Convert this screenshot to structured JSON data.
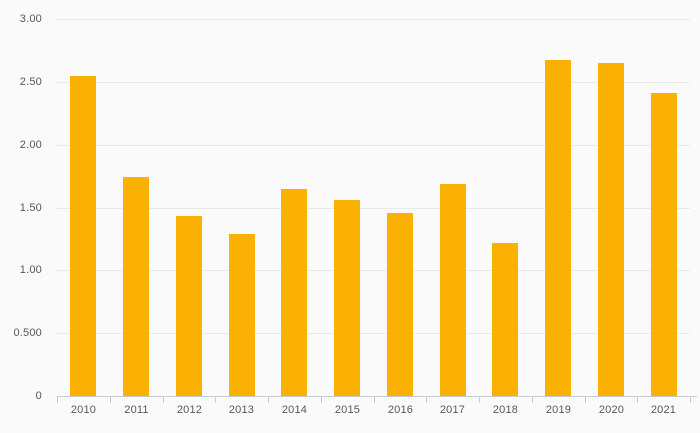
{
  "chart_data": {
    "type": "bar",
    "title": "",
    "xlabel": "",
    "ylabel": "",
    "categories": [
      "2010",
      "2011",
      "2012",
      "2013",
      "2014",
      "2015",
      "2016",
      "2017",
      "2018",
      "2019",
      "2020",
      "2021"
    ],
    "values": [
      2.55,
      1.74,
      1.43,
      1.29,
      1.65,
      1.56,
      1.46,
      1.69,
      1.22,
      2.67,
      2.65,
      2.41
    ],
    "ylim": [
      0,
      3
    ],
    "y_ticks": [
      {
        "value": 3,
        "label": "3.00"
      },
      {
        "value": 2.5,
        "label": "2.50"
      },
      {
        "value": 2,
        "label": "2.00"
      },
      {
        "value": 1.5,
        "label": "1.50"
      },
      {
        "value": 1,
        "label": "1.00"
      },
      {
        "value": 0.5,
        "label": "0.500"
      },
      {
        "value": 0,
        "label": "0"
      }
    ],
    "grid": "horizontal-only",
    "legend": "none",
    "colors": {
      "bar": "#FBB004",
      "background": "#FAFAFA",
      "gridline": "#E9E9E9",
      "axis_line": "#C6CDDB",
      "label_text": "#58585C"
    }
  }
}
